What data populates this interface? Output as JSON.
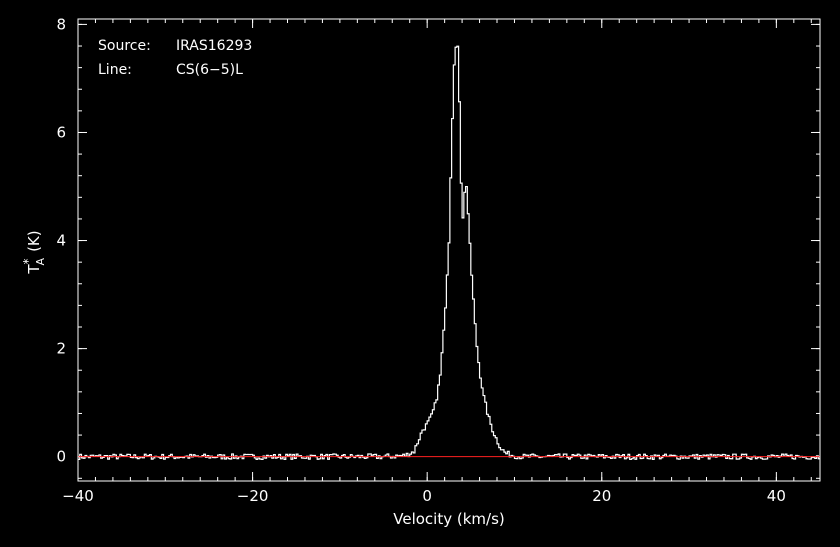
{
  "chart_data": {
    "type": "line",
    "title": "",
    "xlabel": "Velocity (km/s)",
    "ylabel_main": "T",
    "ylabel_sub": "A",
    "ylabel_sup": "*",
    "ylabel_unit": "(K)",
    "xlim": [
      -40,
      45
    ],
    "ylim": [
      -0.45,
      8.1
    ],
    "x_major_ticks": [
      -40,
      -20,
      0,
      20,
      40
    ],
    "x_tick_labels": [
      "−40",
      "−20",
      "0",
      "20",
      "40"
    ],
    "x_minor_step": 2,
    "y_major_ticks": [
      0,
      2,
      4,
      6,
      8
    ],
    "y_tick_labels": [
      "0",
      "2",
      "4",
      "6",
      "8"
    ],
    "y_minor_step": 0.4,
    "grid": false,
    "annotations": {
      "source_label": "Source:",
      "source_value": "IRAS16293",
      "line_label": "Line:",
      "line_value": "CS(6−5)L"
    },
    "series": [
      {
        "style": "histogram",
        "color": "#ffffff",
        "x": [
          -40,
          -30,
          -20,
          -10,
          -5,
          -2.5,
          -1.5,
          -1,
          -0.5,
          0,
          0.5,
          1,
          1.5,
          2,
          2.5,
          2.8,
          3.1,
          3.4,
          3.6,
          3.8,
          4.0,
          4.2,
          4.4,
          4.6,
          4.8,
          5.0,
          5.3,
          5.6,
          6.0,
          6.5,
          7,
          7.5,
          8,
          8.5,
          9,
          10,
          11,
          15,
          20,
          30,
          45
        ],
        "values": [
          0,
          0,
          0,
          0,
          0,
          0.02,
          0.1,
          0.3,
          0.5,
          0.6,
          0.75,
          1.0,
          1.5,
          2.5,
          4.0,
          5.8,
          7.3,
          7.7,
          7.4,
          5.8,
          4.4,
          4.5,
          5.25,
          4.8,
          4.2,
          3.6,
          2.9,
          2.2,
          1.6,
          1.1,
          0.75,
          0.5,
          0.3,
          0.15,
          0.06,
          0.02,
          0,
          0,
          0,
          0,
          0
        ],
        "noise_rms": 0.03
      },
      {
        "style": "baseline",
        "color": "#ff2020",
        "x": [
          -40,
          45
        ],
        "values": [
          0,
          0
        ]
      }
    ]
  }
}
